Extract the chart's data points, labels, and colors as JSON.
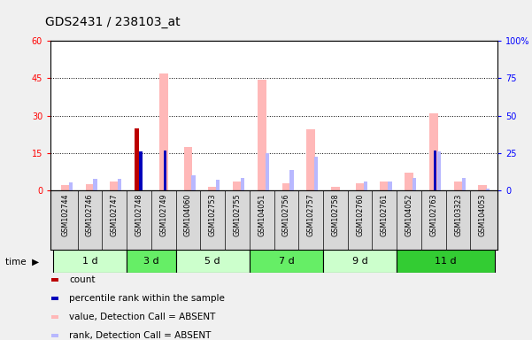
{
  "title": "GDS2431 / 238103_at",
  "samples": [
    "GSM102744",
    "GSM102746",
    "GSM102747",
    "GSM102748",
    "GSM102749",
    "GSM104060",
    "GSM102753",
    "GSM102755",
    "GSM104051",
    "GSM102756",
    "GSM102757",
    "GSM102758",
    "GSM102760",
    "GSM102761",
    "GSM104052",
    "GSM102763",
    "GSM103323",
    "GSM104053"
  ],
  "time_groups": [
    {
      "label": "1 d",
      "start": 0,
      "end": 3,
      "color": "#ccffcc"
    },
    {
      "label": "3 d",
      "start": 3,
      "end": 5,
      "color": "#66ee66"
    },
    {
      "label": "5 d",
      "start": 5,
      "end": 8,
      "color": "#ccffcc"
    },
    {
      "label": "7 d",
      "start": 8,
      "end": 11,
      "color": "#66ee66"
    },
    {
      "label": "9 d",
      "start": 11,
      "end": 14,
      "color": "#ccffcc"
    },
    {
      "label": "11 d",
      "start": 14,
      "end": 18,
      "color": "#33cc33"
    }
  ],
  "value_absent": [
    2.0,
    2.5,
    3.5,
    0.0,
    47.0,
    17.5,
    1.5,
    3.5,
    44.5,
    3.0,
    24.5,
    1.5,
    3.0,
    3.5,
    7.0,
    31.0,
    3.5,
    2.0
  ],
  "rank_absent": [
    5.5,
    8.0,
    8.0,
    0.0,
    0.0,
    10.0,
    7.0,
    8.5,
    25.0,
    13.5,
    22.5,
    0.0,
    6.0,
    6.0,
    8.5,
    26.0,
    8.5,
    1.5
  ],
  "count": [
    0.0,
    0.0,
    0.0,
    25.0,
    0.0,
    0.0,
    0.0,
    0.0,
    0.0,
    0.0,
    0.0,
    0.0,
    0.0,
    0.0,
    0.0,
    0.0,
    0.0,
    0.0
  ],
  "pct_rank": [
    0.0,
    0.0,
    0.0,
    26.0,
    26.5,
    0.0,
    0.0,
    0.0,
    0.0,
    0.0,
    0.0,
    0.0,
    0.0,
    0.0,
    0.0,
    26.5,
    0.0,
    0.0
  ],
  "ylim_left": [
    0,
    60
  ],
  "ylim_right": [
    0,
    100
  ],
  "yticks_left": [
    0,
    15,
    30,
    45,
    60
  ],
  "yticks_right": [
    0,
    25,
    50,
    75,
    100
  ],
  "color_value_absent": "#ffb8b8",
  "color_rank_absent": "#b8b8ff",
  "color_count": "#bb0000",
  "color_pct_rank": "#0000bb",
  "sample_bg": "#d8d8d8",
  "fig_bg": "#f0f0f0",
  "legend_items": [
    {
      "color": "#bb0000",
      "label": "count"
    },
    {
      "color": "#0000bb",
      "label": "percentile rank within the sample"
    },
    {
      "color": "#ffb8b8",
      "label": "value, Detection Call = ABSENT"
    },
    {
      "color": "#b8b8ff",
      "label": "rank, Detection Call = ABSENT"
    }
  ]
}
